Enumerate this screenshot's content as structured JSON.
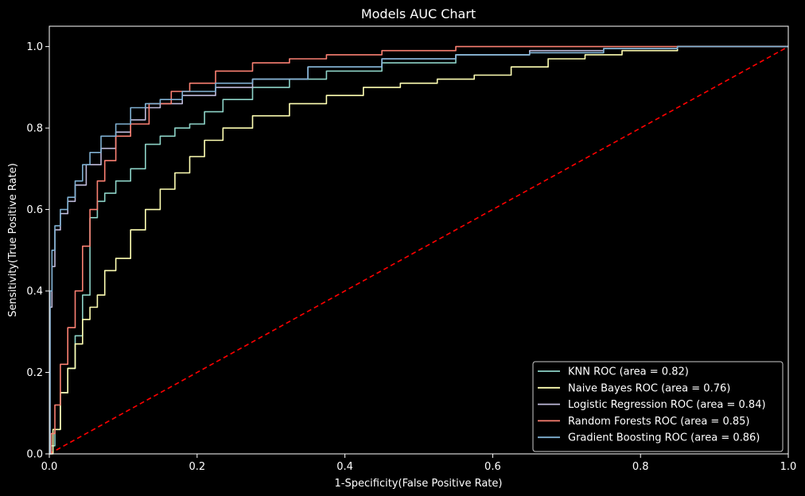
{
  "chart_data": {
    "type": "line",
    "title": "Models AUC Chart",
    "xlabel": "1-Specificity(False Positive Rate)",
    "ylabel": "Sensitivity(True Positive Rate)",
    "xlim": [
      0.0,
      1.0
    ],
    "ylim": [
      0.0,
      1.05
    ],
    "xticks": [
      "0.0",
      "0.2",
      "0.4",
      "0.6",
      "0.8",
      "1.0"
    ],
    "yticks": [
      "0.0",
      "0.2",
      "0.4",
      "0.6",
      "0.8",
      "1.0"
    ],
    "grid": false,
    "legend_position": "lower-right",
    "background": "#000000",
    "series": [
      {
        "name": "KNN ROC (area = 0.82)",
        "color": "#8dd3c7",
        "x": [
          0.0,
          0.005,
          0.01,
          0.02,
          0.03,
          0.04,
          0.05,
          0.06,
          0.07,
          0.08,
          0.1,
          0.12,
          0.14,
          0.16,
          0.18,
          0.2,
          0.22,
          0.25,
          0.3,
          0.35,
          0.4,
          0.5,
          0.6,
          0.7,
          0.8,
          0.9,
          1.0
        ],
        "y": [
          0.0,
          0.02,
          0.06,
          0.15,
          0.21,
          0.29,
          0.39,
          0.58,
          0.62,
          0.64,
          0.67,
          0.7,
          0.76,
          0.78,
          0.8,
          0.81,
          0.84,
          0.87,
          0.9,
          0.92,
          0.94,
          0.96,
          0.98,
          0.985,
          0.995,
          1.0,
          1.0
        ]
      },
      {
        "name": "Naive Bayes ROC (area = 0.76)",
        "color": "#ffffb3",
        "x": [
          0.0,
          0.01,
          0.02,
          0.03,
          0.04,
          0.05,
          0.06,
          0.07,
          0.08,
          0.1,
          0.12,
          0.14,
          0.16,
          0.18,
          0.2,
          0.22,
          0.25,
          0.3,
          0.35,
          0.4,
          0.45,
          0.5,
          0.55,
          0.6,
          0.65,
          0.7,
          0.75,
          0.8,
          0.9,
          1.0
        ],
        "y": [
          0.0,
          0.06,
          0.15,
          0.21,
          0.27,
          0.33,
          0.36,
          0.39,
          0.45,
          0.48,
          0.55,
          0.6,
          0.65,
          0.69,
          0.73,
          0.77,
          0.8,
          0.83,
          0.86,
          0.88,
          0.9,
          0.91,
          0.92,
          0.93,
          0.95,
          0.97,
          0.98,
          0.99,
          1.0,
          1.0
        ]
      },
      {
        "name": "Logistic Regression ROC (area = 0.84)",
        "color": "#bebada",
        "x": [
          0.0,
          0.002,
          0.005,
          0.01,
          0.02,
          0.03,
          0.04,
          0.06,
          0.08,
          0.1,
          0.12,
          0.14,
          0.16,
          0.2,
          0.25,
          0.3,
          0.4,
          0.5,
          0.6,
          0.7,
          0.8,
          0.9,
          1.0
        ],
        "y": [
          0.0,
          0.36,
          0.46,
          0.55,
          0.59,
          0.62,
          0.66,
          0.71,
          0.75,
          0.79,
          0.82,
          0.85,
          0.86,
          0.88,
          0.9,
          0.92,
          0.95,
          0.97,
          0.98,
          0.99,
          0.995,
          1.0,
          1.0
        ]
      },
      {
        "name": "Random Forests ROC (area = 0.85)",
        "color": "#fb8072",
        "x": [
          0.0,
          0.005,
          0.01,
          0.02,
          0.03,
          0.04,
          0.05,
          0.06,
          0.07,
          0.08,
          0.1,
          0.12,
          0.15,
          0.18,
          0.2,
          0.25,
          0.3,
          0.35,
          0.4,
          0.5,
          0.6,
          0.7,
          0.8,
          0.9,
          1.0
        ],
        "y": [
          0.0,
          0.05,
          0.12,
          0.22,
          0.31,
          0.4,
          0.51,
          0.6,
          0.67,
          0.72,
          0.78,
          0.81,
          0.86,
          0.89,
          0.91,
          0.94,
          0.96,
          0.97,
          0.98,
          0.99,
          1.0,
          1.0,
          1.0,
          1.0,
          1.0
        ]
      },
      {
        "name": "Gradient Boosting ROC (area = 0.86)",
        "color": "#80b1d3",
        "x": [
          0.0,
          0.002,
          0.005,
          0.01,
          0.02,
          0.03,
          0.04,
          0.05,
          0.06,
          0.08,
          0.1,
          0.12,
          0.14,
          0.16,
          0.2,
          0.25,
          0.3,
          0.4,
          0.5,
          0.6,
          0.7,
          0.8,
          0.9,
          1.0
        ],
        "y": [
          0.0,
          0.4,
          0.5,
          0.56,
          0.6,
          0.63,
          0.67,
          0.71,
          0.74,
          0.78,
          0.81,
          0.85,
          0.86,
          0.87,
          0.89,
          0.91,
          0.92,
          0.95,
          0.97,
          0.98,
          0.985,
          0.995,
          1.0,
          1.0
        ]
      }
    ],
    "reference_line": {
      "color": "#ff0000",
      "style": "dashed",
      "x": [
        0.0,
        1.0
      ],
      "y": [
        0.0,
        1.0
      ]
    }
  }
}
